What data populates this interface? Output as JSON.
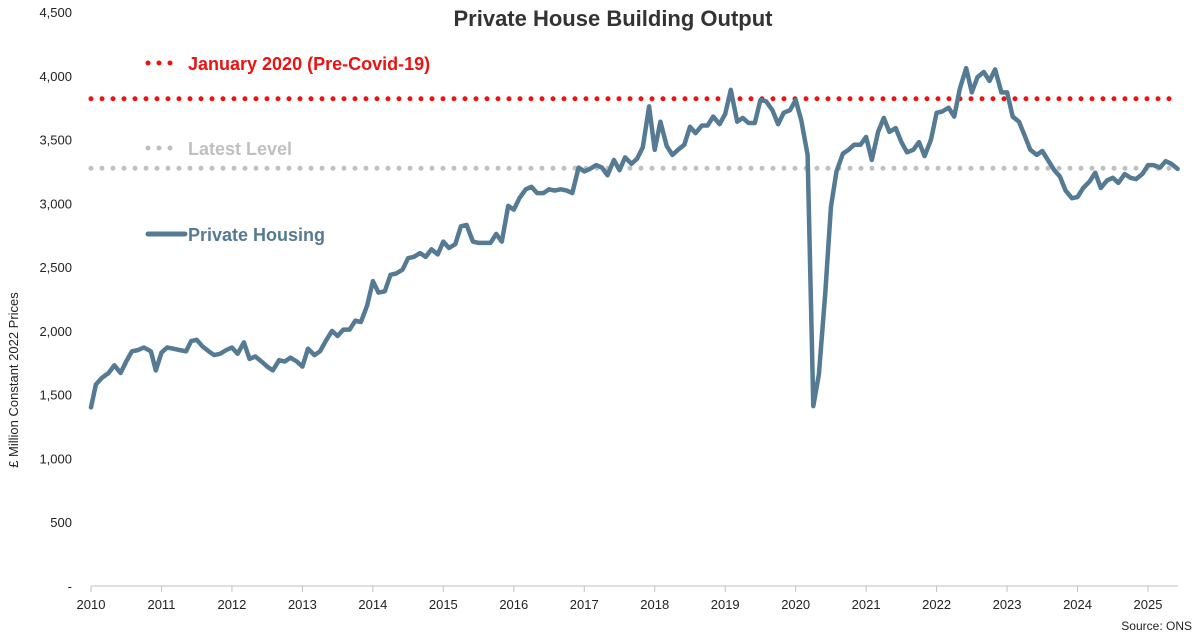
{
  "chart_data": {
    "type": "line",
    "title": "Private House Building Output",
    "ylabel": "£ Million Constant 2022 Prices",
    "xlabel": "",
    "source": "Source: ONS",
    "ylim": [
      0,
      4500
    ],
    "xlim": [
      2010,
      2025.5
    ],
    "y_ticks": [
      {
        "value": 0,
        "label": "-"
      },
      {
        "value": 500,
        "label": "500"
      },
      {
        "value": 1000,
        "label": "1,000"
      },
      {
        "value": 1500,
        "label": "1,500"
      },
      {
        "value": 2000,
        "label": "2,000"
      },
      {
        "value": 2500,
        "label": "2,500"
      },
      {
        "value": 3000,
        "label": "3,000"
      },
      {
        "value": 3500,
        "label": "3,500"
      },
      {
        "value": 4000,
        "label": "4,000"
      },
      {
        "value": 4500,
        "label": "4,500"
      }
    ],
    "x_ticks": [
      {
        "value": 2010,
        "label": "2010"
      },
      {
        "value": 2011,
        "label": "2011"
      },
      {
        "value": 2012,
        "label": "2012"
      },
      {
        "value": 2013,
        "label": "2013"
      },
      {
        "value": 2014,
        "label": "2014"
      },
      {
        "value": 2015,
        "label": "2015"
      },
      {
        "value": 2016,
        "label": "2016"
      },
      {
        "value": 2017,
        "label": "2017"
      },
      {
        "value": 2018,
        "label": "2018"
      },
      {
        "value": 2019,
        "label": "2019"
      },
      {
        "value": 2020,
        "label": "2020"
      },
      {
        "value": 2021,
        "label": "2021"
      },
      {
        "value": 2022,
        "label": "2022"
      },
      {
        "value": 2023,
        "label": "2023"
      },
      {
        "value": 2024,
        "label": "2024"
      },
      {
        "value": 2025,
        "label": "2025"
      }
    ],
    "reference_lines": [
      {
        "name": "January 2020 (Pre-Covid-19)",
        "value": 3820,
        "color": "#ee1111",
        "style": "dotted"
      },
      {
        "name": "Latest Level",
        "value": 3275,
        "color": "#c0c0c0",
        "style": "dotted"
      }
    ],
    "series": [
      {
        "name": "Private Housing",
        "color": "#557a93",
        "points": [
          [
            2010.0,
            1400
          ],
          [
            2010.07,
            1580
          ],
          [
            2010.15,
            1630
          ],
          [
            2010.25,
            1670
          ],
          [
            2010.33,
            1730
          ],
          [
            2010.42,
            1670
          ],
          [
            2010.5,
            1760
          ],
          [
            2010.58,
            1840
          ],
          [
            2010.67,
            1850
          ],
          [
            2010.75,
            1870
          ],
          [
            2010.85,
            1840
          ],
          [
            2010.92,
            1690
          ],
          [
            2011.0,
            1830
          ],
          [
            2011.08,
            1870
          ],
          [
            2011.17,
            1860
          ],
          [
            2011.25,
            1850
          ],
          [
            2011.35,
            1840
          ],
          [
            2011.42,
            1920
          ],
          [
            2011.5,
            1930
          ],
          [
            2011.58,
            1880
          ],
          [
            2011.67,
            1840
          ],
          [
            2011.75,
            1810
          ],
          [
            2011.83,
            1820
          ],
          [
            2011.92,
            1850
          ],
          [
            2012.0,
            1870
          ],
          [
            2012.08,
            1820
          ],
          [
            2012.17,
            1910
          ],
          [
            2012.25,
            1780
          ],
          [
            2012.33,
            1800
          ],
          [
            2012.42,
            1760
          ],
          [
            2012.5,
            1720
          ],
          [
            2012.58,
            1690
          ],
          [
            2012.67,
            1770
          ],
          [
            2012.75,
            1760
          ],
          [
            2012.83,
            1790
          ],
          [
            2012.92,
            1760
          ],
          [
            2013.0,
            1720
          ],
          [
            2013.08,
            1860
          ],
          [
            2013.17,
            1810
          ],
          [
            2013.25,
            1840
          ],
          [
            2013.33,
            1920
          ],
          [
            2013.42,
            2000
          ],
          [
            2013.5,
            1960
          ],
          [
            2013.58,
            2010
          ],
          [
            2013.67,
            2010
          ],
          [
            2013.75,
            2080
          ],
          [
            2013.83,
            2070
          ],
          [
            2013.92,
            2200
          ],
          [
            2014.0,
            2390
          ],
          [
            2014.08,
            2300
          ],
          [
            2014.17,
            2310
          ],
          [
            2014.25,
            2440
          ],
          [
            2014.33,
            2450
          ],
          [
            2014.42,
            2480
          ],
          [
            2014.5,
            2570
          ],
          [
            2014.58,
            2580
          ],
          [
            2014.67,
            2610
          ],
          [
            2014.75,
            2580
          ],
          [
            2014.83,
            2640
          ],
          [
            2014.92,
            2600
          ],
          [
            2015.0,
            2700
          ],
          [
            2015.08,
            2650
          ],
          [
            2015.17,
            2680
          ],
          [
            2015.25,
            2820
          ],
          [
            2015.33,
            2830
          ],
          [
            2015.42,
            2700
          ],
          [
            2015.5,
            2690
          ],
          [
            2015.58,
            2690
          ],
          [
            2015.67,
            2690
          ],
          [
            2015.75,
            2760
          ],
          [
            2015.83,
            2700
          ],
          [
            2015.92,
            2980
          ],
          [
            2016.0,
            2950
          ],
          [
            2016.08,
            3040
          ],
          [
            2016.17,
            3110
          ],
          [
            2016.25,
            3130
          ],
          [
            2016.33,
            3080
          ],
          [
            2016.42,
            3080
          ],
          [
            2016.5,
            3110
          ],
          [
            2016.58,
            3100
          ],
          [
            2016.67,
            3110
          ],
          [
            2016.75,
            3100
          ],
          [
            2016.83,
            3080
          ],
          [
            2016.92,
            3280
          ],
          [
            2017.0,
            3250
          ],
          [
            2017.08,
            3270
          ],
          [
            2017.17,
            3300
          ],
          [
            2017.25,
            3280
          ],
          [
            2017.33,
            3220
          ],
          [
            2017.42,
            3340
          ],
          [
            2017.5,
            3260
          ],
          [
            2017.58,
            3360
          ],
          [
            2017.67,
            3310
          ],
          [
            2017.75,
            3350
          ],
          [
            2017.83,
            3440
          ],
          [
            2017.92,
            3760
          ],
          [
            2018.0,
            3420
          ],
          [
            2018.08,
            3640
          ],
          [
            2018.17,
            3450
          ],
          [
            2018.25,
            3380
          ],
          [
            2018.33,
            3420
          ],
          [
            2018.42,
            3460
          ],
          [
            2018.5,
            3600
          ],
          [
            2018.58,
            3550
          ],
          [
            2018.67,
            3610
          ],
          [
            2018.75,
            3610
          ],
          [
            2018.83,
            3680
          ],
          [
            2018.92,
            3620
          ],
          [
            2019.0,
            3700
          ],
          [
            2019.08,
            3890
          ],
          [
            2019.17,
            3640
          ],
          [
            2019.25,
            3670
          ],
          [
            2019.33,
            3630
          ],
          [
            2019.42,
            3630
          ],
          [
            2019.5,
            3810
          ],
          [
            2019.58,
            3800
          ],
          [
            2019.67,
            3730
          ],
          [
            2019.75,
            3620
          ],
          [
            2019.83,
            3710
          ],
          [
            2019.92,
            3730
          ],
          [
            2020.0,
            3810
          ],
          [
            2020.08,
            3650
          ],
          [
            2020.17,
            3380
          ],
          [
            2020.25,
            1410
          ],
          [
            2020.33,
            1660
          ],
          [
            2020.42,
            2300
          ],
          [
            2020.5,
            2970
          ],
          [
            2020.58,
            3250
          ],
          [
            2020.67,
            3390
          ],
          [
            2020.75,
            3420
          ],
          [
            2020.83,
            3460
          ],
          [
            2020.92,
            3460
          ],
          [
            2021.0,
            3520
          ],
          [
            2021.08,
            3340
          ],
          [
            2021.17,
            3560
          ],
          [
            2021.25,
            3670
          ],
          [
            2021.33,
            3560
          ],
          [
            2021.42,
            3590
          ],
          [
            2021.5,
            3480
          ],
          [
            2021.58,
            3400
          ],
          [
            2021.67,
            3420
          ],
          [
            2021.75,
            3480
          ],
          [
            2021.83,
            3370
          ],
          [
            2021.92,
            3500
          ],
          [
            2022.0,
            3710
          ],
          [
            2022.08,
            3720
          ],
          [
            2022.17,
            3750
          ],
          [
            2022.25,
            3680
          ],
          [
            2022.33,
            3900
          ],
          [
            2022.42,
            4060
          ],
          [
            2022.5,
            3870
          ],
          [
            2022.58,
            3990
          ],
          [
            2022.67,
            4030
          ],
          [
            2022.75,
            3960
          ],
          [
            2022.83,
            4050
          ],
          [
            2022.92,
            3870
          ],
          [
            2023.0,
            3870
          ],
          [
            2023.08,
            3680
          ],
          [
            2023.17,
            3640
          ],
          [
            2023.25,
            3530
          ],
          [
            2023.33,
            3420
          ],
          [
            2023.42,
            3380
          ],
          [
            2023.5,
            3410
          ],
          [
            2023.58,
            3340
          ],
          [
            2023.67,
            3260
          ],
          [
            2023.75,
            3210
          ],
          [
            2023.83,
            3100
          ],
          [
            2023.92,
            3040
          ],
          [
            2024.0,
            3050
          ],
          [
            2024.08,
            3120
          ],
          [
            2024.17,
            3170
          ],
          [
            2024.25,
            3240
          ],
          [
            2024.33,
            3120
          ],
          [
            2024.42,
            3180
          ],
          [
            2024.5,
            3200
          ],
          [
            2024.58,
            3160
          ],
          [
            2024.67,
            3230
          ],
          [
            2024.75,
            3200
          ],
          [
            2024.83,
            3190
          ],
          [
            2024.92,
            3230
          ],
          [
            2025.0,
            3300
          ],
          [
            2025.08,
            3300
          ],
          [
            2025.17,
            3280
          ],
          [
            2025.25,
            3330
          ],
          [
            2025.33,
            3310
          ],
          [
            2025.42,
            3270
          ]
        ]
      }
    ]
  }
}
